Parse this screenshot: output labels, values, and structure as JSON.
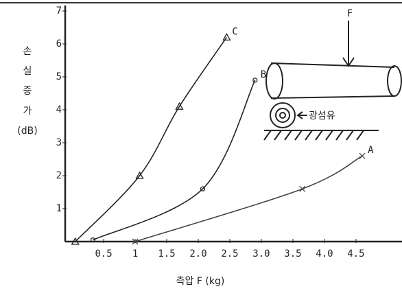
{
  "chart_data": {
    "type": "line",
    "y_label": [
      "손",
      "실",
      "증",
      "가",
      "(dB)"
    ],
    "x_label": "측압 F (kg)",
    "annotations": {
      "force": "F",
      "fiber": "광섬유"
    },
    "series": [
      {
        "name": "A",
        "color": "#444",
        "marker": "cross",
        "x": [
          1.0,
          3.65,
          4.6
        ],
        "values": [
          0,
          1.6,
          2.6
        ]
      },
      {
        "name": "B",
        "color": "#222",
        "marker": "circle",
        "x": [
          0.33,
          2.07,
          2.9
        ],
        "values": [
          0.05,
          1.6,
          4.9
        ]
      },
      {
        "name": "C",
        "color": "#222",
        "marker": "triangle",
        "x": [
          0.05,
          1.07,
          1.7,
          2.45
        ],
        "values": [
          0,
          2.0,
          4.1,
          6.2
        ]
      }
    ],
    "xlim": [
      -0.11,
      5.23
    ],
    "ylim": [
      0,
      7
    ],
    "xticks": [
      0.5,
      1,
      1.5,
      {
        "value": 2,
        "label": "2.0"
      },
      2.5,
      {
        "value": 3,
        "label": "3.0"
      },
      3.5,
      {
        "value": 4,
        "label": "4.0"
      },
      4.5
    ],
    "yticks": [
      1,
      2,
      3,
      4,
      5,
      6,
      7
    ]
  }
}
